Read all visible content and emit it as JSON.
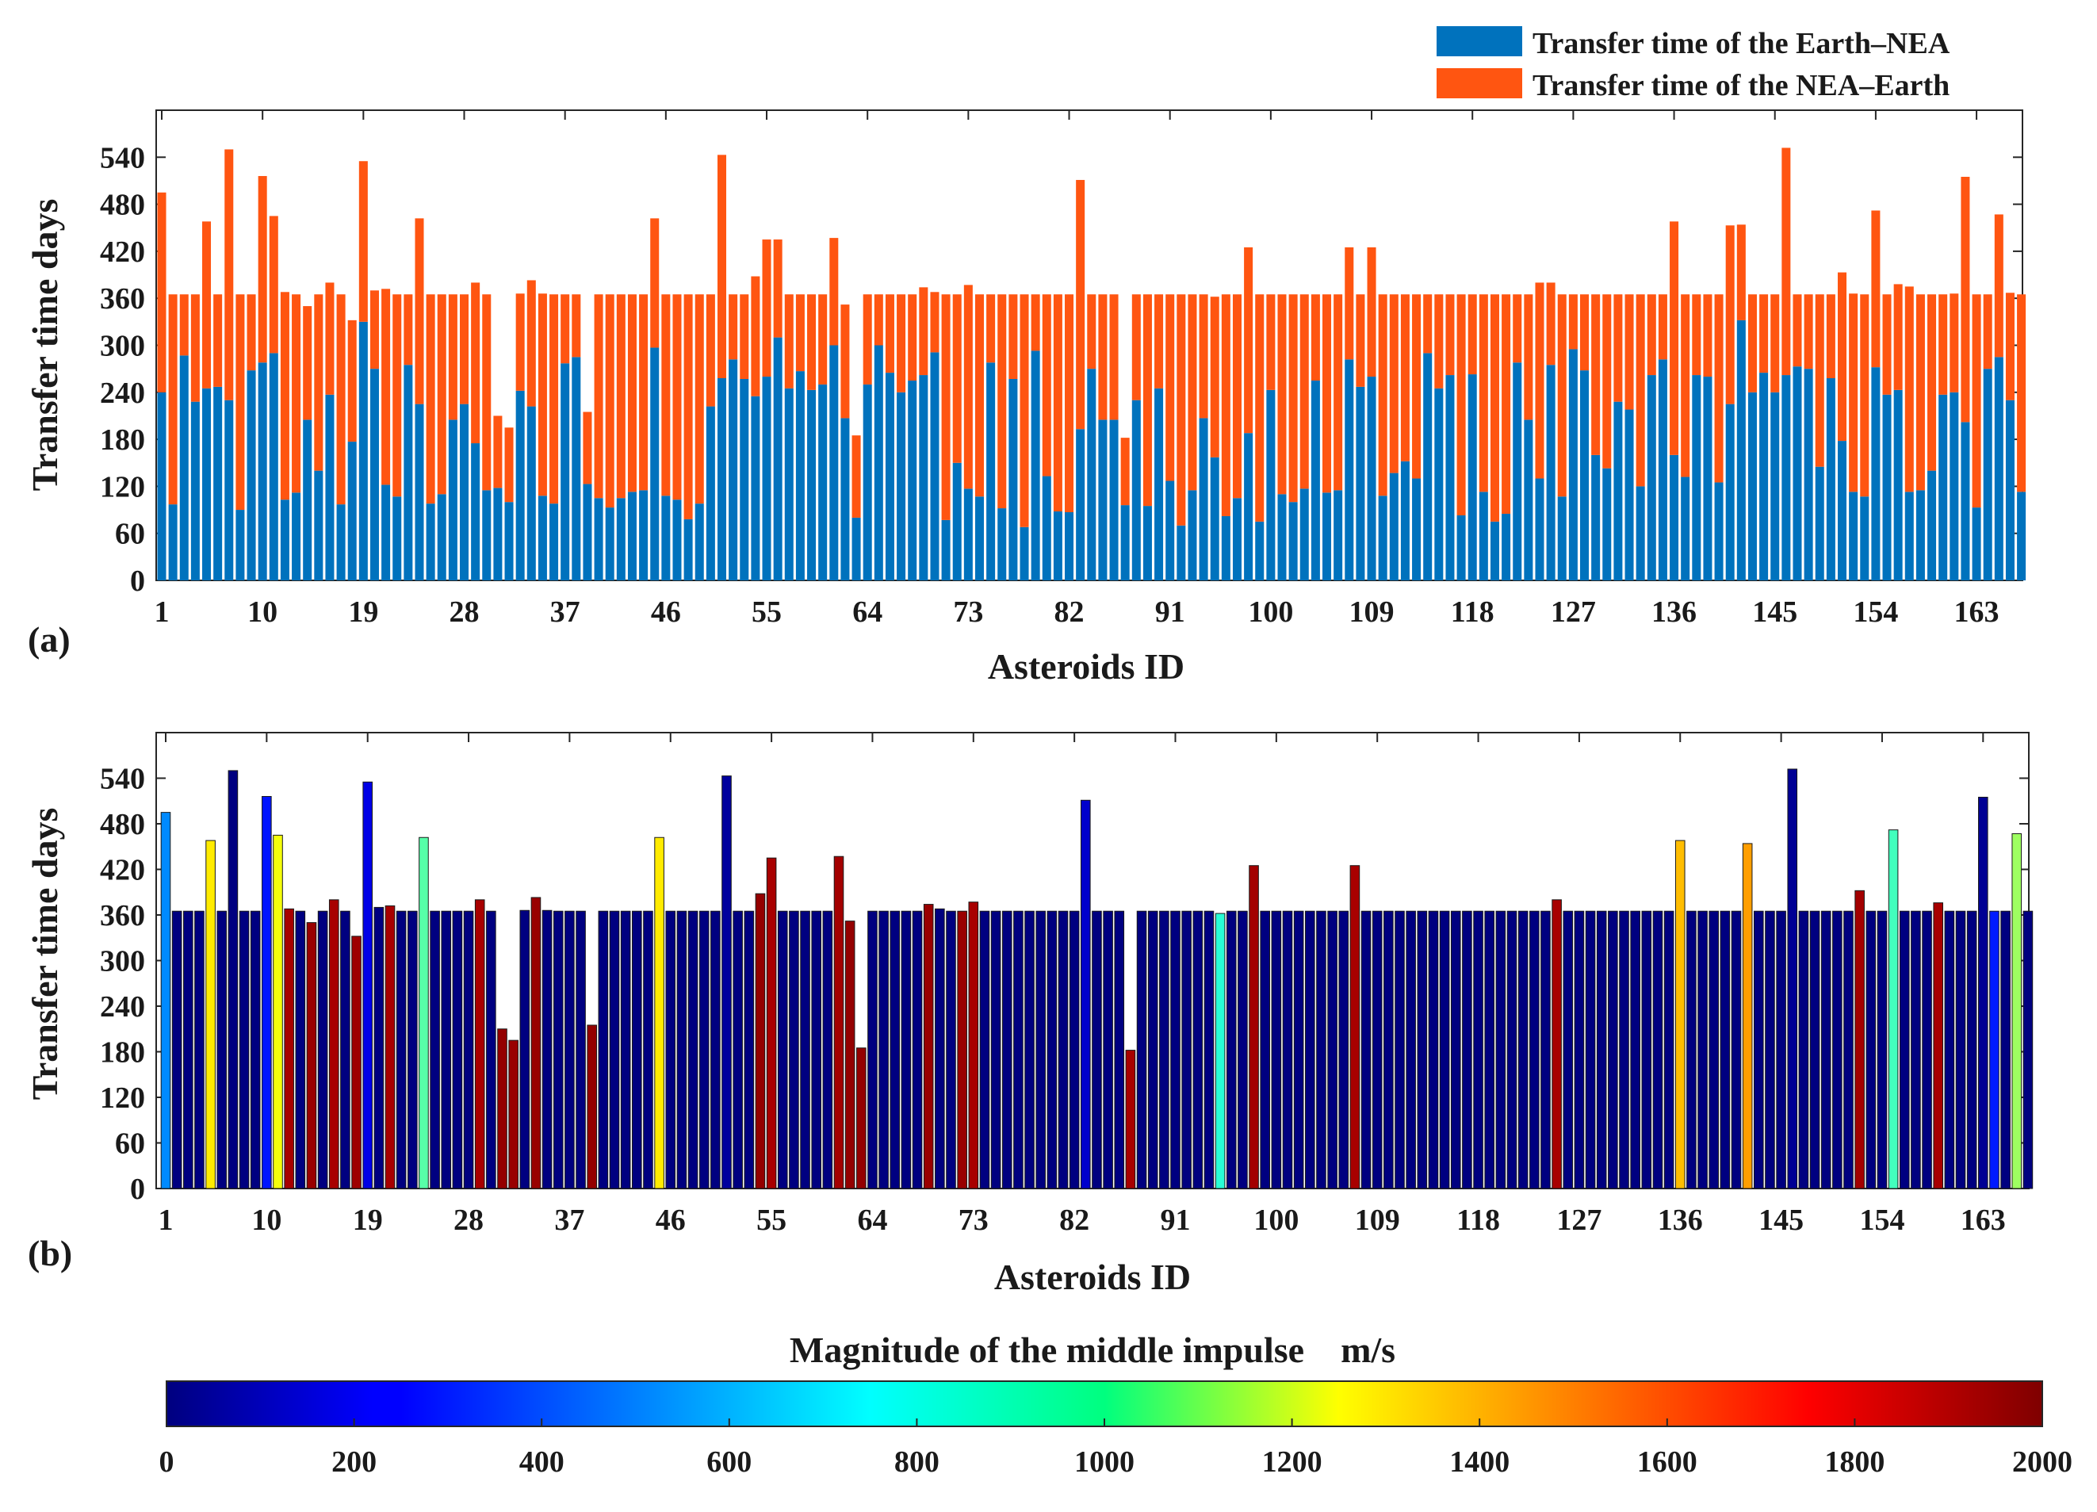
{
  "chart_data": [
    {
      "type": "bar",
      "stacked": true,
      "panel_label": "(a)",
      "xlabel": "Asteroids ID",
      "ylabel": "Transfer time days",
      "ylim": [
        0,
        600
      ],
      "yticks": [
        0,
        60,
        120,
        180,
        240,
        300,
        360,
        420,
        480,
        540
      ],
      "xtick_labels": [
        "1",
        "10",
        "19",
        "28",
        "37",
        "46",
        "55",
        "64",
        "73",
        "82",
        "91",
        "100",
        "109",
        "118",
        "127",
        "136",
        "145",
        "154",
        "163"
      ],
      "legend_position": "top-right",
      "series": [
        {
          "name": "Transfer time of the Earth–NEA",
          "color": "#0072BD",
          "values": [
            240,
            97,
            287,
            228,
            245,
            247,
            230,
            90,
            268,
            278,
            290,
            103,
            112,
            205,
            140,
            237,
            97,
            177,
            330,
            270,
            122,
            107,
            275,
            225,
            98,
            110,
            205,
            225,
            175,
            115,
            118,
            100,
            242,
            222,
            108,
            98,
            277,
            285,
            123,
            105,
            93,
            105,
            113,
            115,
            297,
            108,
            103,
            78,
            98,
            222,
            258,
            282,
            257,
            235,
            260,
            310,
            245,
            267,
            243,
            250,
            300,
            207,
            80,
            250,
            300,
            265,
            240,
            255,
            262,
            291,
            77,
            150,
            117,
            107,
            278,
            92,
            257,
            68,
            293,
            133,
            88,
            87,
            193,
            270,
            205,
            205,
            96,
            230,
            95,
            245,
            127,
            70,
            115,
            207,
            157,
            82,
            105,
            188,
            75,
            243,
            110,
            100,
            117,
            255,
            112,
            115,
            282,
            247,
            260,
            108,
            137,
            152,
            130,
            290,
            245,
            262,
            83,
            263,
            113,
            75,
            85,
            278,
            205,
            130,
            275,
            107,
            295,
            268,
            160,
            143,
            228,
            218,
            120,
            262,
            282,
            160,
            132,
            262,
            260,
            125,
            225,
            332,
            240,
            265,
            240,
            262,
            273,
            270,
            145,
            258,
            178,
            113,
            107,
            272,
            237,
            243,
            113,
            115,
            140,
            237,
            240,
            202,
            93,
            270,
            285,
            230,
            113
          ]
        },
        {
          "name": "Transfer time of the NEA–Earth",
          "color": "#FF5511",
          "values": [
            255,
            268,
            78,
            137,
            213,
            118,
            320,
            275,
            97,
            238,
            175,
            265,
            253,
            145,
            225,
            143,
            268,
            155,
            205,
            100,
            250,
            258,
            90,
            237,
            267,
            255,
            160,
            140,
            205,
            250,
            92,
            95,
            124,
            161,
            258,
            267,
            88,
            80,
            92,
            260,
            272,
            260,
            252,
            250,
            165,
            257,
            262,
            287,
            267,
            143,
            285,
            83,
            108,
            153,
            175,
            125,
            120,
            98,
            122,
            115,
            137,
            145,
            105,
            115,
            65,
            100,
            125,
            110,
            112,
            77,
            288,
            215,
            260,
            258,
            87,
            273,
            108,
            297,
            72,
            232,
            277,
            278,
            318,
            95,
            160,
            160,
            86,
            135,
            270,
            120,
            238,
            295,
            250,
            158,
            205,
            283,
            260,
            237,
            290,
            122,
            255,
            265,
            248,
            110,
            253,
            250,
            143,
            118,
            165,
            257,
            228,
            213,
            235,
            75,
            120,
            103,
            282,
            102,
            252,
            290,
            280,
            87,
            160,
            250,
            105,
            258,
            70,
            97,
            205,
            222,
            137,
            147,
            245,
            103,
            83,
            298,
            233,
            103,
            105,
            240,
            228,
            122,
            125,
            100,
            125,
            290,
            92,
            95,
            220,
            107,
            215,
            253,
            258,
            200,
            128,
            135,
            262,
            250,
            225,
            128,
            126,
            313,
            272,
            95,
            182,
            137,
            252
          ]
        }
      ]
    },
    {
      "type": "bar",
      "panel_label": "(b)",
      "xlabel": "Asteroids ID",
      "ylabel": "Transfer time days",
      "ylim": [
        0,
        600
      ],
      "yticks": [
        0,
        60,
        120,
        180,
        240,
        300,
        360,
        420,
        480,
        540
      ],
      "xtick_labels": [
        "1",
        "10",
        "19",
        "28",
        "37",
        "46",
        "55",
        "64",
        "73",
        "82",
        "91",
        "100",
        "109",
        "118",
        "127",
        "136",
        "145",
        "154",
        "163"
      ],
      "total_days": [
        495,
        365,
        365,
        365,
        458,
        365,
        550,
        365,
        365,
        516,
        465,
        368,
        365,
        350,
        365,
        380,
        365,
        332,
        535,
        370,
        372,
        365,
        365,
        462,
        365,
        365,
        365,
        365,
        380,
        365,
        210,
        195,
        366,
        383,
        366,
        365,
        365,
        365,
        215,
        365,
        365,
        365,
        365,
        365,
        462,
        365,
        365,
        365,
        365,
        365,
        543,
        365,
        365,
        388,
        435,
        365,
        365,
        365,
        365,
        365,
        437,
        352,
        185,
        365,
        365,
        365,
        365,
        365,
        374,
        368,
        365,
        365,
        377,
        365,
        365,
        365,
        365,
        365,
        365,
        365,
        365,
        365,
        511,
        365,
        365,
        365,
        182,
        365,
        365,
        365,
        365,
        365,
        365,
        365,
        362,
        365,
        365,
        425,
        365,
        365,
        365,
        365,
        365,
        365,
        365,
        365,
        425,
        365,
        365,
        365,
        365,
        365,
        365,
        365,
        365,
        365,
        365,
        365,
        365,
        365,
        365,
        365,
        365,
        365,
        380,
        365,
        365,
        365,
        365,
        365,
        365,
        365,
        365,
        365,
        365,
        458,
        365,
        365,
        365,
        365,
        365,
        454,
        365,
        365,
        365,
        552,
        365,
        365,
        365,
        365,
        365,
        392,
        365,
        365,
        472,
        365,
        365,
        365,
        376,
        365,
        365,
        365,
        515,
        365,
        365,
        467,
        365
      ],
      "middle_impulse_m_s": [
        520,
        0,
        0,
        0,
        1290,
        0,
        0,
        0,
        0,
        290,
        1230,
        1920,
        0,
        1950,
        0,
        1920,
        0,
        1940,
        200,
        0,
        1920,
        0,
        0,
        920,
        0,
        0,
        0,
        0,
        1920,
        0,
        1960,
        1950,
        0,
        1950,
        0,
        0,
        0,
        0,
        1960,
        0,
        0,
        0,
        0,
        0,
        1290,
        0,
        0,
        0,
        0,
        0,
        60,
        0,
        0,
        1960,
        1920,
        0,
        0,
        0,
        0,
        0,
        1930,
        1960,
        1960,
        0,
        0,
        0,
        0,
        0,
        1950,
        0,
        0,
        1950,
        1920,
        0,
        0,
        0,
        0,
        0,
        0,
        0,
        0,
        0,
        150,
        0,
        0,
        0,
        1920,
        0,
        0,
        0,
        0,
        0,
        0,
        0,
        830,
        0,
        0,
        1930,
        0,
        0,
        0,
        0,
        0,
        0,
        0,
        0,
        1920,
        0,
        0,
        0,
        0,
        0,
        0,
        0,
        0,
        0,
        0,
        0,
        0,
        0,
        0,
        0,
        0,
        0,
        1920,
        0,
        0,
        0,
        0,
        0,
        0,
        0,
        0,
        0,
        0,
        1380,
        0,
        0,
        0,
        0,
        0,
        1440,
        0,
        0,
        0,
        40,
        0,
        0,
        0,
        0,
        0,
        1930,
        0,
        0,
        880,
        0,
        0,
        0,
        1920,
        0,
        0,
        0,
        40,
        300,
        0,
        1060,
        0
      ]
    }
  ],
  "colorbar": {
    "title": "Magnitude of the middle impulse    m/s",
    "min": 0,
    "max": 2000,
    "tick_labels": [
      "0",
      "200",
      "400",
      "600",
      "800",
      "1000",
      "1200",
      "1400",
      "1600",
      "1800",
      "2000"
    ],
    "colormap": "jet"
  }
}
